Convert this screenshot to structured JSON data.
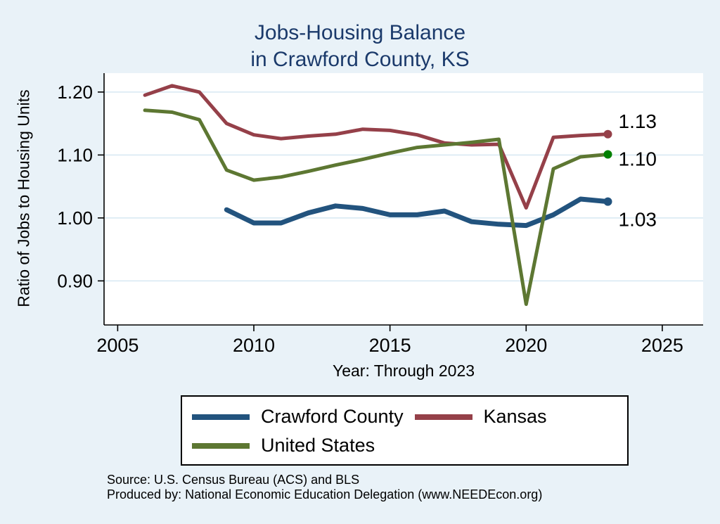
{
  "page": {
    "background": "#e9f2f8"
  },
  "title": {
    "line1": "Jobs-Housing Balance",
    "line2": "in Crawford County, KS",
    "color": "#1b3a6b"
  },
  "chart_data": {
    "type": "line",
    "title": "Jobs-Housing Balance in Crawford County, KS",
    "xlabel": "Year: Through 2023",
    "ylabel": "Ratio of Jobs to Housing Units",
    "xlim": [
      2004.5,
      2026.5
    ],
    "ylim": [
      0.83,
      1.23
    ],
    "x_ticks": [
      2005,
      2010,
      2015,
      2020,
      2025
    ],
    "y_ticks": [
      0.9,
      1.0,
      1.1,
      1.2
    ],
    "grid": "horizontal-only",
    "legend_position": "bottom",
    "plot_background": "#ffffff",
    "gridline_color": "#d6e8f2",
    "series": [
      {
        "name": "Crawford County",
        "color": "#22537e",
        "line_width": 7,
        "end_label": "1.03",
        "label_offset_y": 25,
        "x": [
          2009,
          2010,
          2011,
          2012,
          2013,
          2014,
          2015,
          2016,
          2017,
          2018,
          2019,
          2020,
          2021,
          2022,
          2023
        ],
        "y": [
          1.013,
          0.992,
          0.992,
          1.008,
          1.019,
          1.015,
          1.005,
          1.005,
          1.011,
          0.994,
          0.99,
          0.988,
          1.005,
          1.03,
          1.026
        ]
      },
      {
        "name": "Kansas",
        "color": "#954049",
        "line_width": 5,
        "end_label": "1.13",
        "label_offset_y": -19,
        "x": [
          2006,
          2007,
          2008,
          2009,
          2010,
          2011,
          2012,
          2013,
          2014,
          2015,
          2016,
          2017,
          2018,
          2019,
          2020,
          2021,
          2022,
          2023
        ],
        "y": [
          1.195,
          1.21,
          1.2,
          1.15,
          1.132,
          1.126,
          1.13,
          1.133,
          1.141,
          1.139,
          1.132,
          1.119,
          1.116,
          1.117,
          1.016,
          1.128,
          1.131,
          1.133
        ]
      },
      {
        "name": "United States",
        "color": "#5d7732",
        "line_width": 5,
        "end_label": "1.10",
        "label_offset_y": 6,
        "marker_color": "#008000",
        "x": [
          2006,
          2007,
          2008,
          2009,
          2010,
          2011,
          2012,
          2013,
          2014,
          2015,
          2016,
          2017,
          2018,
          2019,
          2020,
          2021,
          2022,
          2023
        ],
        "y": [
          1.171,
          1.168,
          1.156,
          1.076,
          1.06,
          1.065,
          1.074,
          1.084,
          1.093,
          1.103,
          1.112,
          1.116,
          1.12,
          1.125,
          0.863,
          1.078,
          1.097,
          1.101
        ]
      }
    ]
  },
  "legend": {
    "items": [
      {
        "label": "Crawford County",
        "color": "#22537e"
      },
      {
        "label": "Kansas",
        "color": "#954049"
      },
      {
        "label": "United States",
        "color": "#5d7732"
      }
    ]
  },
  "footer": {
    "source": "Source: U.S. Census Bureau (ACS) and BLS",
    "produced": "Produced by: National Economic Education Delegation (www.NEEDEcon.org)"
  }
}
